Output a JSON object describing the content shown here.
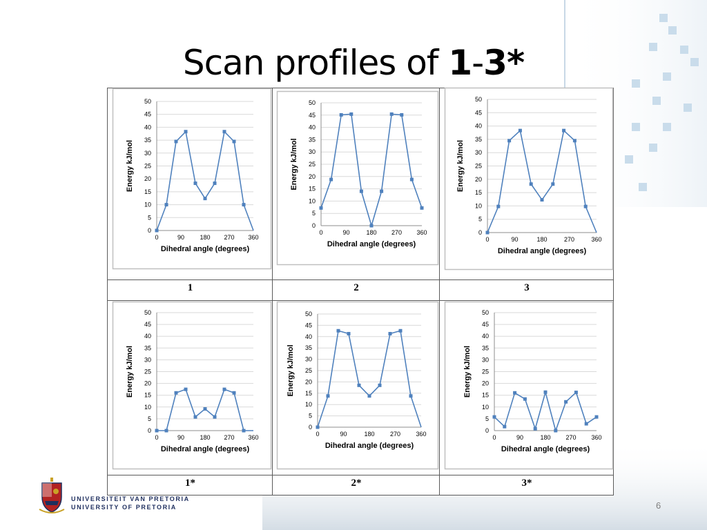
{
  "slide": {
    "title_prefix": "Scan profiles of ",
    "title_bold_1": "1",
    "title_dash": "-",
    "title_bold_2": "3*",
    "page_number": "6"
  },
  "logo": {
    "line1": "UNIVERSITEIT VAN PRETORIA",
    "line2": "UNIVERSITY OF PRETORIA"
  },
  "colors": {
    "series": "#4f81bd",
    "grid": "#d9d9d9",
    "border": "#5a5a5a"
  },
  "labels": [
    "1",
    "2",
    "3",
    "1*",
    "2*",
    "3*"
  ],
  "chart_data": [
    {
      "type": "line",
      "compound": "1",
      "xlabel": "Dihedral angle (degrees)",
      "ylabel": "Energy kJ/mol",
      "xlim": [
        0,
        360
      ],
      "ylim": [
        0,
        50
      ],
      "xticks": [
        0,
        90,
        180,
        270,
        360
      ],
      "yticks": [
        0,
        5,
        10,
        15,
        20,
        25,
        30,
        35,
        40,
        45,
        50
      ],
      "grid": true,
      "x": [
        0,
        36,
        72,
        108,
        144,
        180,
        216,
        252,
        288,
        324,
        360
      ],
      "y": [
        0,
        10,
        34.5,
        38.3,
        18.3,
        12.4,
        18.3,
        38.3,
        34.5,
        10,
        0
      ]
    },
    {
      "type": "line",
      "compound": "2",
      "xlabel": "Dihedral angle (degrees)",
      "ylabel": "Energy kJ/mol",
      "xlim": [
        0,
        360
      ],
      "ylim": [
        0,
        50
      ],
      "xticks": [
        0,
        90,
        180,
        270,
        360
      ],
      "yticks": [
        0,
        5,
        10,
        15,
        20,
        25,
        30,
        35,
        40,
        45,
        50
      ],
      "grid": true,
      "x": [
        0,
        36,
        72,
        108,
        144,
        180,
        216,
        252,
        288,
        324,
        360
      ],
      "y": [
        7.2,
        18.8,
        45.1,
        45.4,
        14,
        0,
        14,
        45.4,
        45.1,
        18.8,
        7.2
      ]
    },
    {
      "type": "line",
      "compound": "3",
      "xlabel": "Dihedral angle (degrees)",
      "ylabel": "Energy kJ/mol",
      "xlim": [
        0,
        360
      ],
      "ylim": [
        0,
        50
      ],
      "xticks": [
        0,
        90,
        180,
        270,
        360
      ],
      "yticks": [
        0,
        5,
        10,
        15,
        20,
        25,
        30,
        35,
        40,
        45,
        50
      ],
      "grid": true,
      "x": [
        0,
        36,
        72,
        108,
        144,
        180,
        216,
        252,
        288,
        324,
        360
      ],
      "y": [
        0,
        9.8,
        34.5,
        38.3,
        18.2,
        12.3,
        18.2,
        38.3,
        34.5,
        9.8,
        0
      ]
    },
    {
      "type": "line",
      "compound": "1*",
      "xlabel": "Dihedral angle (degrees)",
      "ylabel": "Energy kJ/mol",
      "xlim": [
        0,
        360
      ],
      "ylim": [
        0,
        50
      ],
      "xticks": [
        0,
        90,
        180,
        270,
        360
      ],
      "yticks": [
        0,
        5,
        10,
        15,
        20,
        25,
        30,
        35,
        40,
        45,
        50
      ],
      "grid": true,
      "x": [
        0,
        36,
        72,
        108,
        144,
        180,
        216,
        252,
        288,
        324,
        360
      ],
      "y": [
        0,
        0,
        16,
        17.5,
        5.8,
        9.2,
        5.8,
        17.5,
        16,
        0,
        0
      ]
    },
    {
      "type": "line",
      "compound": "2*",
      "xlabel": "Dihedral angle (degrees)",
      "ylabel": "Energy kJ/mol",
      "xlim": [
        0,
        360
      ],
      "ylim": [
        0,
        50
      ],
      "xticks": [
        0,
        90,
        180,
        270,
        360
      ],
      "yticks": [
        0,
        5,
        10,
        15,
        20,
        25,
        30,
        35,
        40,
        45,
        50
      ],
      "grid": true,
      "x": [
        0,
        36,
        72,
        108,
        144,
        180,
        216,
        252,
        288,
        324,
        360
      ],
      "y": [
        0,
        13.8,
        42.6,
        41.3,
        18.5,
        13.8,
        18.5,
        41.3,
        42.6,
        13.8,
        0
      ]
    },
    {
      "type": "line",
      "compound": "3*",
      "xlabel": "Dihedral angle (degrees)",
      "ylabel": "Energy kJ/mol",
      "xlim": [
        0,
        360
      ],
      "ylim": [
        0,
        50
      ],
      "xticks": [
        0,
        90,
        180,
        270,
        360
      ],
      "yticks": [
        0,
        5,
        10,
        15,
        20,
        25,
        30,
        35,
        40,
        45,
        50
      ],
      "grid": true,
      "x": [
        0,
        36,
        72,
        108,
        144,
        180,
        216,
        252,
        288,
        324,
        360
      ],
      "y": [
        5.8,
        1.7,
        16,
        13.4,
        0.8,
        16.3,
        0,
        12.2,
        16.2,
        2.9,
        5.8
      ]
    }
  ]
}
